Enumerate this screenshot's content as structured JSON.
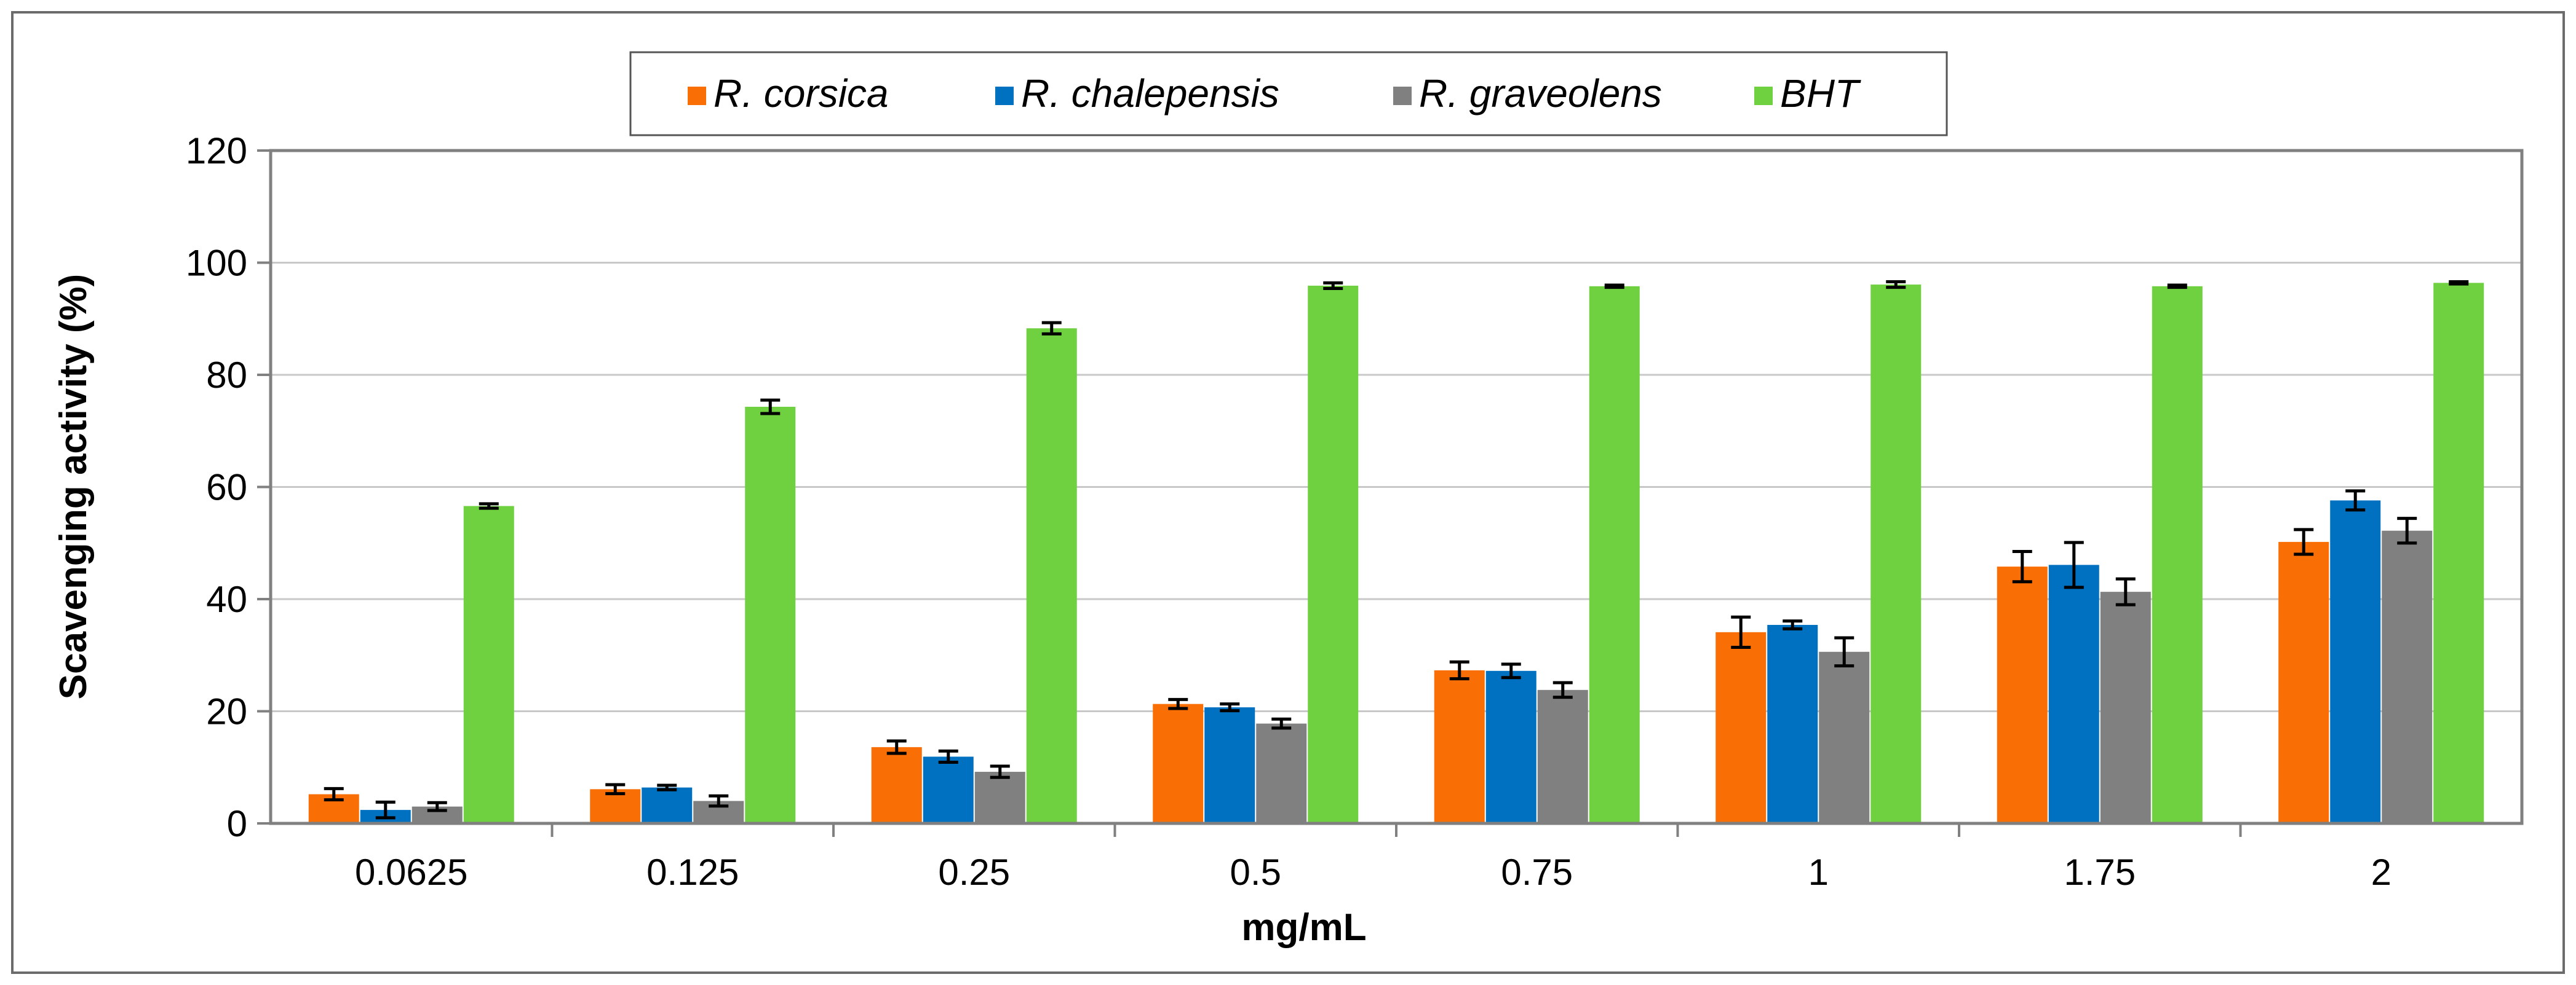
{
  "chart_data": {
    "type": "bar",
    "title": "",
    "xlabel": "mg/mL",
    "ylabel": "Scavenging activity (%)",
    "ylim": [
      0,
      120
    ],
    "yticks": [
      "0",
      "20",
      "40",
      "60",
      "80",
      "100",
      "120"
    ],
    "grid": true,
    "legend_position": "top",
    "categories": [
      "0.0625",
      "0.125",
      "0.25",
      "0.5",
      "0.75",
      "1",
      "1.75",
      "2"
    ],
    "series": [
      {
        "name": "R. corsica",
        "color": "#F96F06",
        "values": [
          5.2,
          6.1,
          13.6,
          21.3,
          27.3,
          34.1,
          45.8,
          50.2
        ],
        "errors": [
          1.0,
          0.8,
          1.1,
          0.8,
          1.5,
          2.7,
          2.7,
          2.2
        ]
      },
      {
        "name": "R. chalepensis",
        "color": "#0070C0",
        "values": [
          2.4,
          6.4,
          11.9,
          20.7,
          27.2,
          35.4,
          46.1,
          57.6
        ],
        "errors": [
          1.4,
          0.4,
          1.0,
          0.6,
          1.2,
          0.7,
          4.0,
          1.7
        ]
      },
      {
        "name": "R. graveolens",
        "color": "#808080",
        "values": [
          3.0,
          4.0,
          9.2,
          17.8,
          23.8,
          30.6,
          41.3,
          52.2
        ],
        "errors": [
          0.7,
          0.9,
          1.0,
          0.8,
          1.3,
          2.5,
          2.3,
          2.2
        ]
      },
      {
        "name": "BHT",
        "color": "#6FD140",
        "values": [
          56.6,
          74.3,
          88.3,
          95.9,
          95.8,
          96.1,
          95.8,
          96.4
        ],
        "errors": [
          0.4,
          1.2,
          1.0,
          0.5,
          0.2,
          0.5,
          0.2,
          0.2
        ]
      }
    ]
  }
}
